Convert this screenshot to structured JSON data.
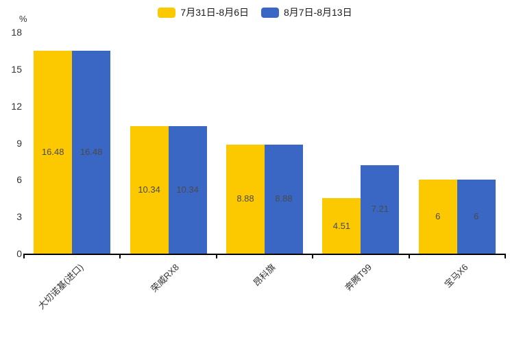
{
  "legend": {
    "items": [
      {
        "label": "7月31日-8月6日",
        "color": "#FCC800"
      },
      {
        "label": "8月7日-8月13日",
        "color": "#3A66C4"
      }
    ]
  },
  "chart_data": {
    "type": "bar",
    "title": "",
    "unit_label": "%",
    "categories": [
      "大切诺基(进口)",
      "荣威RX8",
      "昂科旗",
      "奔腾T99",
      "宝马X6"
    ],
    "series": [
      {
        "name": "7月31日-8月6日",
        "color": "#FCC800",
        "values": [
          16.48,
          10.34,
          8.88,
          4.51,
          6
        ]
      },
      {
        "name": "8月7日-8月13日",
        "color": "#3A66C4",
        "values": [
          16.48,
          10.34,
          8.88,
          7.21,
          6
        ]
      }
    ],
    "y_ticks": [
      0,
      3,
      6,
      9,
      12,
      15,
      18
    ],
    "ylim": [
      0,
      18
    ],
    "xlabel": "",
    "ylabel": "%",
    "grid": false,
    "legend_position": "top",
    "value_labels_inside_bars": true,
    "x_label_rotation_deg": -45
  }
}
